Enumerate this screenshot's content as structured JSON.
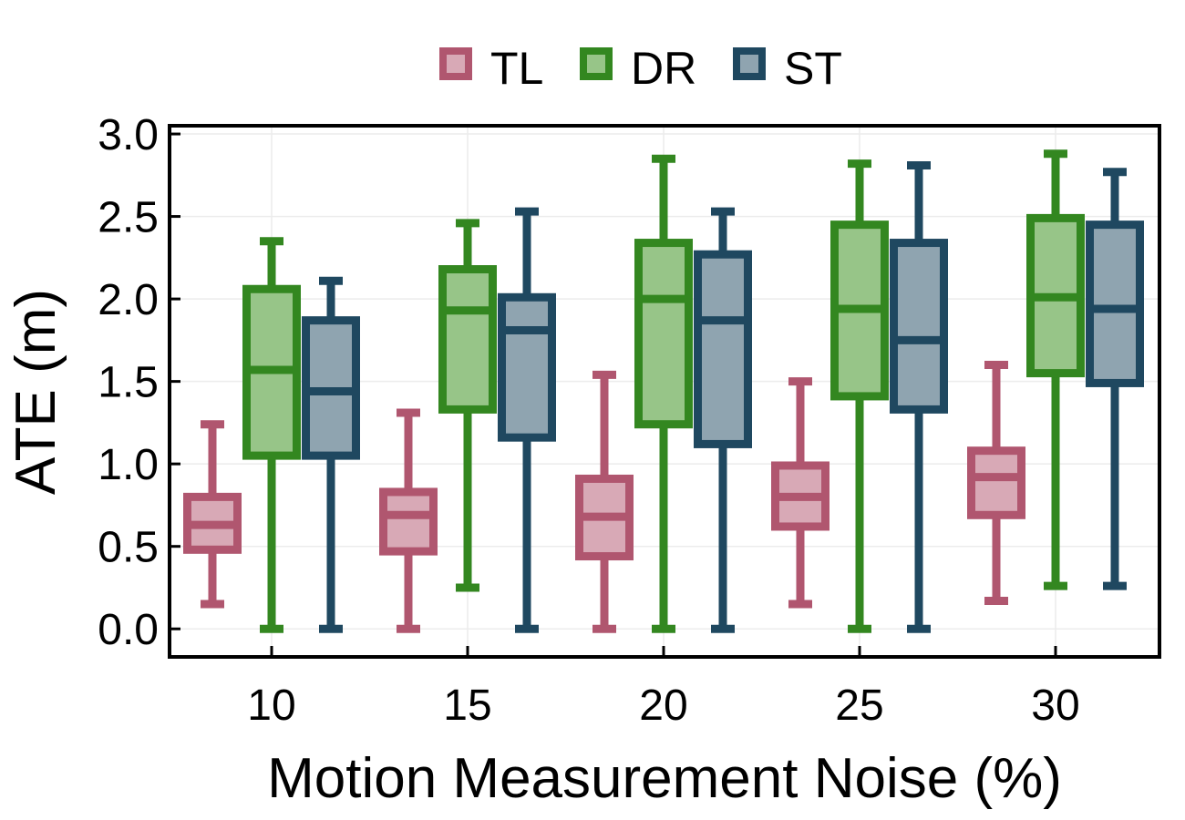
{
  "chart_data": {
    "type": "box",
    "xlabel": "Motion Measurement Noise (%)",
    "ylabel": "ATE (m)",
    "ylim": [
      -0.17,
      3.05
    ],
    "yticks": [
      0.0,
      0.5,
      1.0,
      1.5,
      2.0,
      2.5,
      3.0
    ],
    "ytick_labels": [
      "0.0",
      "0.5",
      "1.0",
      "1.5",
      "2.0",
      "2.5",
      "3.0"
    ],
    "categories": [
      "10",
      "15",
      "20",
      "25",
      "30"
    ],
    "grid": true,
    "legend_position": "top-center",
    "series": [
      {
        "name": "TL",
        "stroke": "#b0566f",
        "fill": "#d8a9b6",
        "boxes": [
          {
            "whisker_low": 0.15,
            "q1": 0.48,
            "median": 0.63,
            "q3": 0.8,
            "whisker_high": 1.24
          },
          {
            "whisker_low": 0.0,
            "q1": 0.47,
            "median": 0.69,
            "q3": 0.83,
            "whisker_high": 1.31
          },
          {
            "whisker_low": 0.0,
            "q1": 0.44,
            "median": 0.68,
            "q3": 0.91,
            "whisker_high": 1.54
          },
          {
            "whisker_low": 0.15,
            "q1": 0.62,
            "median": 0.8,
            "q3": 0.99,
            "whisker_high": 1.5
          },
          {
            "whisker_low": 0.17,
            "q1": 0.69,
            "median": 0.92,
            "q3": 1.08,
            "whisker_high": 1.6
          }
        ]
      },
      {
        "name": "DR",
        "stroke": "#338720",
        "fill": "#97c588",
        "boxes": [
          {
            "whisker_low": 0.0,
            "q1": 1.05,
            "median": 1.57,
            "q3": 2.06,
            "whisker_high": 2.35
          },
          {
            "whisker_low": 0.25,
            "q1": 1.33,
            "median": 1.93,
            "q3": 2.18,
            "whisker_high": 2.46
          },
          {
            "whisker_low": 0.0,
            "q1": 1.24,
            "median": 2.0,
            "q3": 2.34,
            "whisker_high": 2.85
          },
          {
            "whisker_low": 0.0,
            "q1": 1.41,
            "median": 1.94,
            "q3": 2.45,
            "whisker_high": 2.82
          },
          {
            "whisker_low": 0.26,
            "q1": 1.55,
            "median": 2.01,
            "q3": 2.49,
            "whisker_high": 2.88
          }
        ]
      },
      {
        "name": "ST",
        "stroke": "#1f4860",
        "fill": "#8fa4b0",
        "boxes": [
          {
            "whisker_low": 0.0,
            "q1": 1.05,
            "median": 1.44,
            "q3": 1.87,
            "whisker_high": 2.11
          },
          {
            "whisker_low": 0.0,
            "q1": 1.16,
            "median": 1.81,
            "q3": 2.01,
            "whisker_high": 2.53
          },
          {
            "whisker_low": 0.0,
            "q1": 1.12,
            "median": 1.87,
            "q3": 2.27,
            "whisker_high": 2.53
          },
          {
            "whisker_low": 0.0,
            "q1": 1.33,
            "median": 1.75,
            "q3": 2.34,
            "whisker_high": 2.81
          },
          {
            "whisker_low": 0.26,
            "q1": 1.49,
            "median": 1.94,
            "q3": 2.45,
            "whisker_high": 2.77
          }
        ]
      }
    ]
  }
}
